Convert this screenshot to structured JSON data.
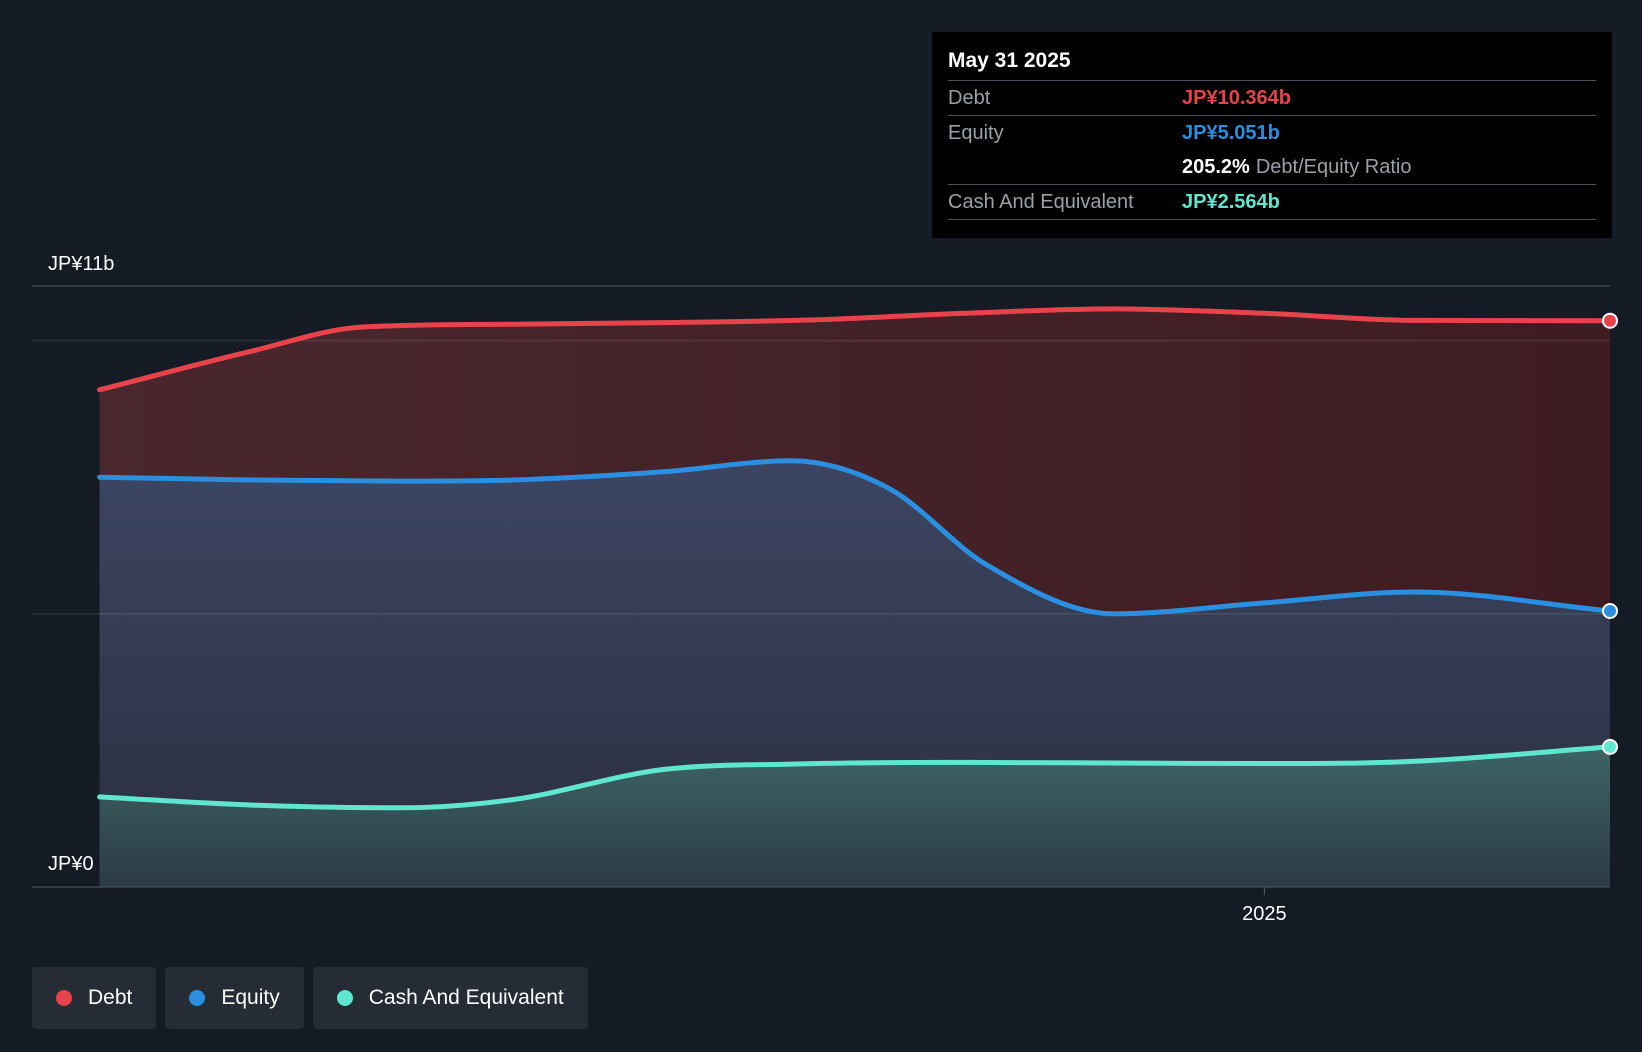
{
  "chart_data": {
    "type": "area",
    "ylim": [
      0,
      11
    ],
    "y_tick_labels": {
      "top": "JP¥11b",
      "bottom": "JP¥0"
    },
    "x_tick_labels": [
      {
        "label": "2025",
        "x": 2025.0
      }
    ],
    "x_range": [
      2023.36,
      2025.46
    ],
    "grid": true,
    "legend_position": "bottom-left",
    "series": [
      {
        "name": "Debt",
        "color": "#e8434a",
        "x": [
          2023.45,
          2023.65,
          2023.8,
          2024.0,
          2024.2,
          2024.4,
          2024.6,
          2024.8,
          2025.0,
          2025.2,
          2025.46
        ],
        "values": [
          9.1,
          9.8,
          10.25,
          10.3,
          10.33,
          10.38,
          10.5,
          10.58,
          10.5,
          10.37,
          10.364
        ]
      },
      {
        "name": "Equity",
        "color": "#2a8fe0",
        "x": [
          2023.45,
          2023.65,
          2023.85,
          2024.0,
          2024.2,
          2024.37,
          2024.5,
          2024.63,
          2024.8,
          2025.0,
          2025.2,
          2025.46
        ],
        "values": [
          7.5,
          7.45,
          7.43,
          7.45,
          7.6,
          7.8,
          7.3,
          5.9,
          5.0,
          5.2,
          5.4,
          5.051
        ]
      },
      {
        "name": "Cash And Equivalent",
        "color": "#5ee6cf",
        "x": [
          2023.45,
          2023.65,
          2023.85,
          2024.0,
          2024.2,
          2024.37,
          2024.6,
          2024.8,
          2025.0,
          2025.2,
          2025.46
        ],
        "values": [
          1.65,
          1.5,
          1.45,
          1.6,
          2.15,
          2.25,
          2.28,
          2.27,
          2.26,
          2.3,
          2.564
        ]
      }
    ]
  },
  "tooltip": {
    "date": "May 31 2025",
    "debt_label": "Debt",
    "debt_value": "JP¥10.364b",
    "equity_label": "Equity",
    "equity_value": "JP¥5.051b",
    "ratio_value": "205.2%",
    "ratio_label": "Debt/Equity Ratio",
    "cash_label": "Cash And Equivalent",
    "cash_value": "JP¥2.564b"
  },
  "legend": [
    {
      "label": "Debt",
      "color": "#e8434a"
    },
    {
      "label": "Equity",
      "color": "#2a8fe0"
    },
    {
      "label": "Cash And Equivalent",
      "color": "#5ee6cf"
    }
  ]
}
